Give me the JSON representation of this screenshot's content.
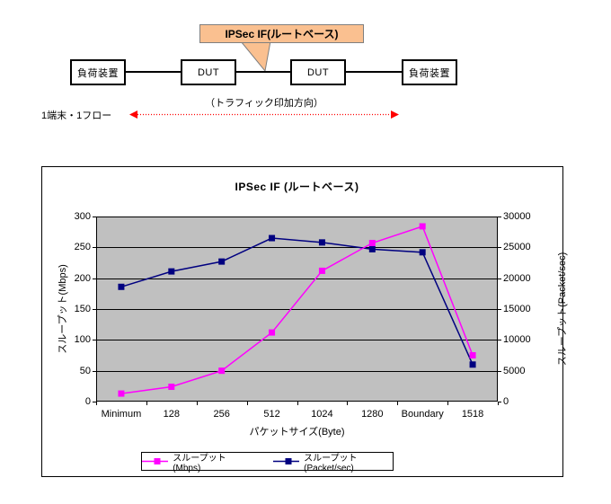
{
  "diagram": {
    "callout_label": "IPSec IF(ルートベース)",
    "callout_fill": "#FAC090",
    "nodes": [
      {
        "label": "負荷装置"
      },
      {
        "label": "DUT"
      },
      {
        "label": "DUT"
      },
      {
        "label": "負荷装置"
      }
    ],
    "traffic_direction_label": "（トラフィック印加方向）",
    "flow_label": "1端末・1フロー",
    "arrow_color": "#FF0000"
  },
  "chart_data": {
    "type": "line",
    "title": "IPSec IF (ルートベース)",
    "categories": [
      "Minimum",
      "128",
      "256",
      "512",
      "1024",
      "1280",
      "Boundary",
      "1518"
    ],
    "series": [
      {
        "name": "スループット(Mbps)",
        "axis": "left",
        "color": "#FF00FF",
        "values": [
          13,
          24,
          50,
          112,
          212,
          257,
          284,
          75
        ]
      },
      {
        "name": "スループット(Packet/sec)",
        "axis": "right",
        "color": "#000080",
        "values": [
          18600,
          21100,
          22700,
          26500,
          25800,
          24700,
          24200,
          6000
        ]
      }
    ],
    "xlabel": "パケットサイズ(Byte)",
    "ylabel_left": "スループット(Mbps)",
    "ylabel_right": "スループット(Packet/sec)",
    "ylim_left": [
      0,
      300
    ],
    "ylim_right": [
      0,
      30000
    ],
    "yticks_left": [
      "0",
      "50",
      "100",
      "150",
      "200",
      "250",
      "300"
    ],
    "yticks_right": [
      "0",
      "5000",
      "10000",
      "15000",
      "20000",
      "25000",
      "30000"
    ],
    "plot_bg": "#C0C0C0",
    "grid": true,
    "legend_position": "bottom"
  }
}
